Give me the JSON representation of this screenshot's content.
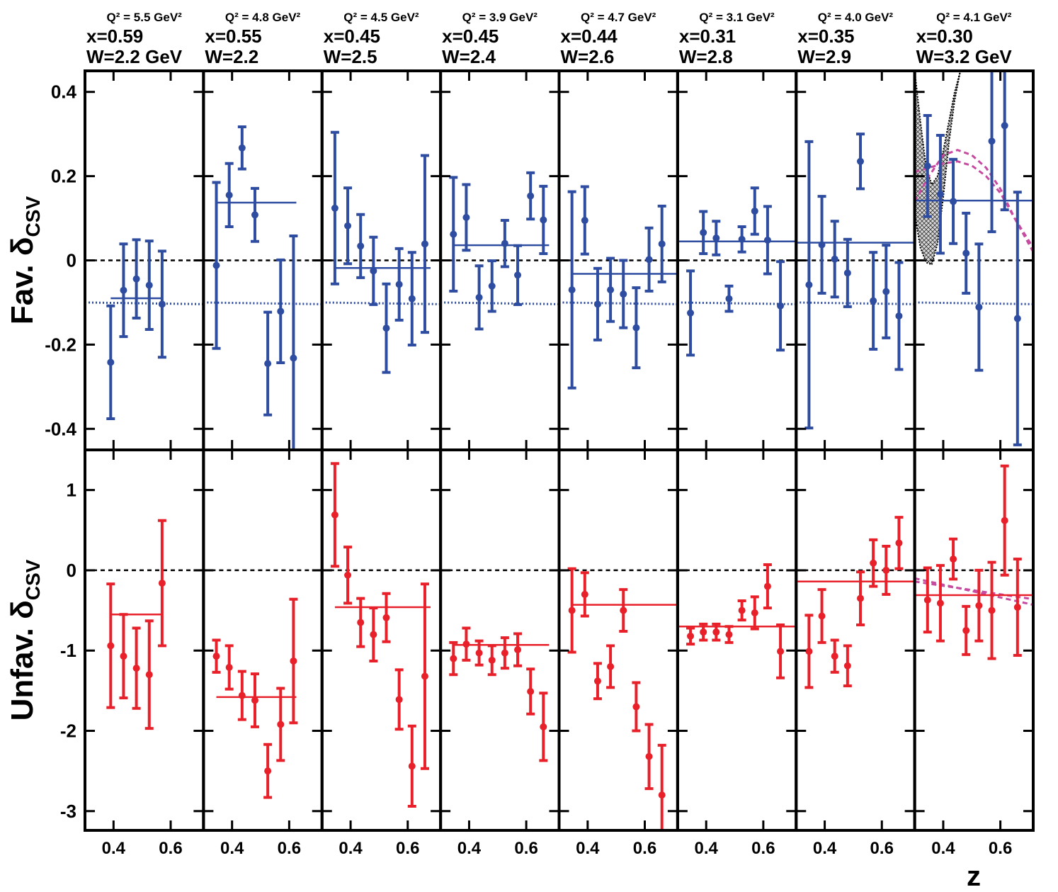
{
  "chart_data": [
    {
      "type": "scatter",
      "title": [
        "Q² = 5.5 GeV²",
        "x=0.59",
        "W=2.2 GeV"
      ],
      "ylabel": [
        "Fav. δ",
        "CSV"
      ],
      "xlim": [
        0.3,
        0.715
      ],
      "ylim": [
        -0.45,
        0.45
      ],
      "xticks": [
        0.4,
        0.6
      ],
      "yticks": [
        -0.4,
        -0.2,
        0,
        0.2,
        0.4
      ],
      "hline": 0,
      "x": [
        0.39,
        0.435,
        0.48,
        0.525,
        0.57
      ],
      "series": [
        {
          "color": "#2e4da0",
          "values": [
            -0.242,
            -0.071,
            -0.044,
            -0.059,
            -0.104
          ],
          "errors": [
            0.134,
            0.11,
            0.093,
            0.105,
            0.126
          ]
        }
      ],
      "fit": {
        "x": [
          0.39,
          0.57
        ],
        "value": -0.09
      },
      "lines": [
        {
          "color": "#2e4da0",
          "dash": "dotted",
          "x": [
            0.3,
            0.715
          ],
          "values": [
            -0.1,
            -0.104
          ]
        }
      ]
    },
    {
      "type": "scatter",
      "title": [
        "Q² = 4.8 GeV²",
        "x=0.55",
        "W=2.2"
      ],
      "xlim": [
        0.3,
        0.715
      ],
      "ylim": [
        -0.45,
        0.45
      ],
      "xticks": [
        0.4,
        0.6
      ],
      "yticks": [
        -0.4,
        -0.2,
        0,
        0.2,
        0.4
      ],
      "hline": 0,
      "x": [
        0.345,
        0.39,
        0.435,
        0.48,
        0.525,
        0.57,
        0.615
      ],
      "series": [
        {
          "color": "#2e4da0",
          "values": [
            -0.012,
            0.155,
            0.267,
            0.108,
            -0.245,
            -0.121,
            -0.232
          ],
          "errors": [
            0.197,
            0.075,
            0.05,
            0.063,
            0.122,
            0.122,
            0.29
          ]
        }
      ],
      "fit": {
        "x": [
          0.345,
          0.625
        ],
        "value": 0.137
      },
      "lines": [
        {
          "color": "#2e4da0",
          "dash": "dotted",
          "x": [
            0.3,
            0.715
          ],
          "values": [
            -0.1,
            -0.104
          ]
        }
      ]
    },
    {
      "type": "scatter",
      "title": [
        "Q² = 4.5 GeV²",
        "x=0.45",
        "W=2.5"
      ],
      "xlim": [
        0.3,
        0.715
      ],
      "ylim": [
        -0.45,
        0.45
      ],
      "xticks": [
        0.4,
        0.6
      ],
      "yticks": [
        -0.4,
        -0.2,
        0,
        0.2,
        0.4
      ],
      "hline": 0,
      "x": [
        0.345,
        0.39,
        0.435,
        0.48,
        0.525,
        0.57,
        0.615,
        0.66
      ],
      "series": [
        {
          "color": "#2e4da0",
          "values": [
            0.124,
            0.082,
            0.034,
            -0.025,
            -0.161,
            -0.057,
            -0.091,
            0.039
          ],
          "errors": [
            0.18,
            0.09,
            0.075,
            0.08,
            0.105,
            0.085,
            0.11,
            0.21
          ]
        }
      ],
      "fit": {
        "x": [
          0.345,
          0.68
        ],
        "value": -0.018
      },
      "lines": [
        {
          "color": "#2e4da0",
          "dash": "dotted",
          "x": [
            0.3,
            0.715
          ],
          "values": [
            -0.1,
            -0.104
          ]
        }
      ]
    },
    {
      "type": "scatter",
      "title": [
        "Q² = 3.9 GeV²",
        "x=0.45",
        "W=2.4"
      ],
      "xlim": [
        0.3,
        0.715
      ],
      "ylim": [
        -0.45,
        0.45
      ],
      "xticks": [
        0.4,
        0.6
      ],
      "yticks": [
        -0.4,
        -0.2,
        0,
        0.2,
        0.4
      ],
      "hline": 0,
      "x": [
        0.345,
        0.39,
        0.435,
        0.48,
        0.525,
        0.57,
        0.615,
        0.66
      ],
      "series": [
        {
          "color": "#2e4da0",
          "values": [
            0.062,
            0.102,
            -0.088,
            -0.061,
            0.04,
            -0.035,
            0.153,
            0.096
          ],
          "errors": [
            0.135,
            0.078,
            0.075,
            0.06,
            0.055,
            0.07,
            0.055,
            0.08
          ]
        }
      ],
      "fit": {
        "x": [
          0.345,
          0.68
        ],
        "value": 0.036
      },
      "lines": [
        {
          "color": "#2e4da0",
          "dash": "dotted",
          "x": [
            0.3,
            0.715
          ],
          "values": [
            -0.1,
            -0.104
          ]
        }
      ]
    },
    {
      "type": "scatter",
      "title": [
        "Q² = 4.7 GeV²",
        "x=0.44",
        "W=2.6"
      ],
      "xlim": [
        0.3,
        0.715
      ],
      "ylim": [
        -0.45,
        0.45
      ],
      "xticks": [
        0.4,
        0.6
      ],
      "yticks": [
        -0.4,
        -0.2,
        0,
        0.2,
        0.4
      ],
      "hline": 0,
      "x": [
        0.345,
        0.39,
        0.435,
        0.48,
        0.525,
        0.57,
        0.615,
        0.66
      ],
      "series": [
        {
          "color": "#2e4da0",
          "values": [
            -0.07,
            0.095,
            -0.104,
            -0.07,
            -0.08,
            -0.16,
            0.002,
            0.039
          ],
          "errors": [
            0.233,
            0.08,
            0.085,
            0.075,
            0.08,
            0.095,
            0.075,
            0.09
          ]
        }
      ],
      "fit": {
        "x": [
          0.345,
          0.715
        ],
        "value": -0.032
      },
      "lines": [
        {
          "color": "#2e4da0",
          "dash": "dotted",
          "x": [
            0.3,
            0.715
          ],
          "values": [
            -0.1,
            -0.104
          ]
        }
      ]
    },
    {
      "type": "scatter",
      "title": [
        "Q² = 3.1 GeV²",
        "x=0.31",
        "W=2.8"
      ],
      "xlim": [
        0.3,
        0.715
      ],
      "ylim": [
        -0.45,
        0.45
      ],
      "xticks": [
        0.4,
        0.6
      ],
      "yticks": [
        -0.4,
        -0.2,
        0,
        0.2,
        0.4
      ],
      "hline": 0,
      "x": [
        0.345,
        0.39,
        0.435,
        0.48,
        0.525,
        0.57,
        0.615,
        0.66
      ],
      "series": [
        {
          "color": "#2e4da0",
          "values": [
            -0.125,
            0.066,
            0.053,
            -0.091,
            0.05,
            0.117,
            0.048,
            -0.108
          ],
          "errors": [
            0.1,
            0.05,
            0.04,
            0.03,
            0.03,
            0.055,
            0.08,
            0.105
          ]
        }
      ],
      "fit": {
        "x": [
          0.3,
          0.715
        ],
        "value": 0.045
      },
      "lines": [
        {
          "color": "#2e4da0",
          "dash": "dotted",
          "x": [
            0.3,
            0.715
          ],
          "values": [
            -0.1,
            -0.104
          ]
        }
      ]
    },
    {
      "type": "scatter",
      "title": [
        "Q² = 4.0 GeV²",
        "x=0.35",
        "W=2.9"
      ],
      "xlim": [
        0.3,
        0.715
      ],
      "ylim": [
        -0.45,
        0.45
      ],
      "xticks": [
        0.4,
        0.6
      ],
      "yticks": [
        -0.4,
        -0.2,
        0,
        0.2,
        0.4
      ],
      "hline": 0,
      "x": [
        0.345,
        0.39,
        0.435,
        0.48,
        0.525,
        0.57,
        0.615,
        0.66
      ],
      "series": [
        {
          "color": "#2e4da0",
          "values": [
            -0.058,
            0.037,
            0.003,
            -0.03,
            0.235,
            -0.096,
            -0.074,
            -0.132
          ],
          "errors": [
            0.34,
            0.115,
            0.09,
            0.08,
            0.065,
            0.115,
            0.11,
            0.127
          ]
        }
      ],
      "fit": {
        "x": [
          0.3,
          0.715
        ],
        "value": 0.042
      },
      "lines": [
        {
          "color": "#2e4da0",
          "dash": "dotted",
          "x": [
            0.3,
            0.715
          ],
          "values": [
            -0.1,
            -0.104
          ]
        }
      ]
    },
    {
      "type": "scatter",
      "title": [
        "Q² = 4.1 GeV²",
        "x=0.30",
        "W=3.2 GeV"
      ],
      "xlim": [
        0.3,
        0.715
      ],
      "ylim": [
        -0.45,
        0.45
      ],
      "xticks": [
        0.4,
        0.6
      ],
      "yticks": [
        -0.4,
        -0.2,
        0,
        0.2,
        0.4
      ],
      "hline": 0,
      "band": {
        "x": [
          0.3,
          0.32,
          0.34,
          0.36,
          0.38,
          0.4,
          0.42,
          0.44,
          0.46
        ],
        "lower": [
          0.11,
          0.03,
          -0.005,
          -0.01,
          0.04,
          0.15,
          0.28,
          0.38,
          0.45
        ],
        "upper": [
          0.45,
          0.33,
          0.22,
          0.18,
          0.2,
          0.26,
          0.33,
          0.4,
          0.45
        ]
      },
      "x": [
        0.345,
        0.39,
        0.435,
        0.48,
        0.525,
        0.57,
        0.615,
        0.66
      ],
      "series": [
        {
          "color": "#2e4da0",
          "values": [
            0.224,
            0.157,
            0.14,
            0.017,
            -0.111,
            0.283,
            0.32,
            -0.138
          ],
          "errors": [
            0.12,
            0.14,
            0.1,
            0.095,
            0.15,
            0.215,
            0.2,
            0.3
          ]
        }
      ],
      "fit": {
        "x": [
          0.3,
          0.715
        ],
        "value": 0.142
      },
      "lines": [
        {
          "color": "#2e4da0",
          "dash": "dotted",
          "x": [
            0.3,
            0.715
          ],
          "values": [
            -0.1,
            -0.104
          ]
        },
        {
          "color": "#c64ba0",
          "dash": "dashed",
          "x": [
            0.3,
            0.35,
            0.4,
            0.45,
            0.5,
            0.55,
            0.6,
            0.65,
            0.715
          ],
          "values": [
            0.14,
            0.2,
            0.25,
            0.262,
            0.25,
            0.22,
            0.17,
            0.1,
            0.02
          ]
        },
        {
          "color": "#c64ba0",
          "dash": "dashed",
          "x": [
            0.3,
            0.35,
            0.4,
            0.45,
            0.5,
            0.55,
            0.6,
            0.65,
            0.715
          ],
          "values": [
            0.21,
            0.22,
            0.23,
            0.235,
            0.225,
            0.2,
            0.16,
            0.1,
            0.03
          ]
        }
      ]
    },
    {
      "type": "scatter",
      "ylabel": [
        "Unfav. δ",
        "CSV"
      ],
      "xlim": [
        0.3,
        0.715
      ],
      "ylim": [
        -3.24,
        1.5
      ],
      "xticks": [
        0.4,
        0.6
      ],
      "yticks": [
        -3,
        -2,
        -1,
        0,
        1
      ],
      "hline": 0,
      "x": [
        0.39,
        0.435,
        0.48,
        0.525,
        0.57
      ],
      "series": [
        {
          "color": "#e8202a",
          "values": [
            -0.94,
            -1.07,
            -1.22,
            -1.3,
            -0.16
          ],
          "errors": [
            0.77,
            0.52,
            0.5,
            0.67,
            0.78
          ]
        }
      ],
      "fit": {
        "x": [
          0.39,
          0.57
        ],
        "value": -0.55
      }
    },
    {
      "type": "scatter",
      "xlim": [
        0.3,
        0.715
      ],
      "ylim": [
        -3.24,
        1.5
      ],
      "xticks": [
        0.4,
        0.6
      ],
      "yticks": [
        -3,
        -2,
        -1,
        0,
        1
      ],
      "hline": 0,
      "x": [
        0.345,
        0.39,
        0.435,
        0.48,
        0.525,
        0.57,
        0.615
      ],
      "series": [
        {
          "color": "#e8202a",
          "values": [
            -1.07,
            -1.21,
            -1.56,
            -1.62,
            -2.5,
            -1.92,
            -1.13
          ],
          "errors": [
            0.2,
            0.27,
            0.3,
            0.33,
            0.33,
            0.45,
            0.77
          ]
        }
      ],
      "fit": {
        "x": [
          0.345,
          0.625
        ],
        "value": -1.58
      }
    },
    {
      "type": "scatter",
      "xlim": [
        0.3,
        0.715
      ],
      "ylim": [
        -3.24,
        1.5
      ],
      "xticks": [
        0.4,
        0.6
      ],
      "yticks": [
        -3,
        -2,
        -1,
        0,
        1
      ],
      "hline": 0,
      "x": [
        0.345,
        0.39,
        0.435,
        0.48,
        0.525,
        0.57,
        0.615,
        0.66
      ],
      "series": [
        {
          "color": "#e8202a",
          "values": [
            0.69,
            -0.06,
            -0.65,
            -0.8,
            -0.59,
            -1.61,
            -2.44,
            -1.32
          ],
          "errors": [
            0.64,
            0.35,
            0.3,
            0.33,
            0.3,
            0.37,
            0.5,
            1.15
          ]
        }
      ],
      "fit": {
        "x": [
          0.345,
          0.68
        ],
        "value": -0.46
      }
    },
    {
      "type": "scatter",
      "xlim": [
        0.3,
        0.715
      ],
      "ylim": [
        -3.24,
        1.5
      ],
      "xticks": [
        0.4,
        0.6
      ],
      "yticks": [
        -3,
        -2,
        -1,
        0,
        1
      ],
      "hline": 0,
      "x": [
        0.345,
        0.39,
        0.435,
        0.48,
        0.525,
        0.57,
        0.615,
        0.66
      ],
      "series": [
        {
          "color": "#e8202a",
          "values": [
            -1.1,
            -0.92,
            -1.03,
            -1.12,
            -1.03,
            -0.99,
            -1.51,
            -1.95
          ],
          "errors": [
            0.2,
            0.2,
            0.15,
            0.18,
            0.19,
            0.2,
            0.28,
            0.42
          ]
        }
      ],
      "fit": {
        "x": [
          0.345,
          0.68
        ],
        "value": -0.93
      }
    },
    {
      "type": "scatter",
      "xlim": [
        0.3,
        0.715
      ],
      "ylim": [
        -3.24,
        1.5
      ],
      "xticks": [
        0.4,
        0.6
      ],
      "yticks": [
        -3,
        -2,
        -1,
        0,
        1
      ],
      "hline": 0,
      "x": [
        0.345,
        0.39,
        0.435,
        0.48,
        0.525,
        0.57,
        0.615,
        0.66
      ],
      "series": [
        {
          "color": "#e8202a",
          "values": [
            -0.5,
            -0.3,
            -1.38,
            -1.2,
            -0.5,
            -1.7,
            -2.32,
            -2.8
          ],
          "errors": [
            0.52,
            0.27,
            0.22,
            0.26,
            0.26,
            0.3,
            0.4,
            0.62
          ]
        }
      ],
      "fit": {
        "x": [
          0.345,
          0.715
        ],
        "value": -0.43
      }
    },
    {
      "type": "scatter",
      "xlim": [
        0.3,
        0.715
      ],
      "ylim": [
        -3.24,
        1.5
      ],
      "xticks": [
        0.4,
        0.6
      ],
      "yticks": [
        -3,
        -2,
        -1,
        0,
        1
      ],
      "hline": 0,
      "x": [
        0.345,
        0.39,
        0.435,
        0.48,
        0.525,
        0.57,
        0.615,
        0.66
      ],
      "series": [
        {
          "color": "#e8202a",
          "values": [
            -0.82,
            -0.77,
            -0.77,
            -0.8,
            -0.5,
            -0.53,
            -0.2,
            -1.01
          ],
          "errors": [
            0.1,
            0.1,
            0.1,
            0.1,
            0.12,
            0.2,
            0.27,
            0.33
          ]
        }
      ],
      "fit": {
        "x": [
          0.3,
          0.715
        ],
        "value": -0.7
      }
    },
    {
      "type": "scatter",
      "xlim": [
        0.3,
        0.715
      ],
      "ylim": [
        -3.24,
        1.5
      ],
      "xticks": [
        0.4,
        0.6
      ],
      "yticks": [
        -3,
        -2,
        -1,
        0,
        1
      ],
      "hline": 0,
      "x": [
        0.345,
        0.39,
        0.435,
        0.48,
        0.525,
        0.57,
        0.615,
        0.66
      ],
      "series": [
        {
          "color": "#e8202a",
          "values": [
            -1.01,
            -0.57,
            -1.07,
            -1.19,
            -0.35,
            0.09,
            0,
            0.34
          ],
          "errors": [
            0.45,
            0.33,
            0.2,
            0.25,
            0.33,
            0.29,
            0.3,
            0.32
          ]
        }
      ],
      "fit": {
        "x": [
          0.3,
          0.715
        ],
        "value": -0.14
      }
    },
    {
      "type": "scatter",
      "xlabel": "z",
      "xlim": [
        0.3,
        0.715
      ],
      "ylim": [
        -3.24,
        1.5
      ],
      "xticks": [
        0.4,
        0.6
      ],
      "yticks": [
        -3,
        -2,
        -1,
        0,
        1
      ],
      "hline": 0,
      "x": [
        0.345,
        0.39,
        0.435,
        0.48,
        0.525,
        0.57,
        0.615,
        0.66
      ],
      "series": [
        {
          "color": "#e8202a",
          "values": [
            -0.37,
            -0.41,
            0.14,
            -0.75,
            -0.44,
            -0.5,
            0.62,
            -0.46
          ],
          "errors": [
            0.4,
            0.47,
            0.25,
            0.3,
            0.44,
            0.6,
            0.68,
            0.6
          ]
        }
      ],
      "fit": {
        "x": [
          0.3,
          0.715
        ],
        "value": -0.31
      },
      "lines": [
        {
          "color": "#c64ba0",
          "dash": "dashed",
          "x": [
            0.3,
            0.715
          ],
          "values": [
            -0.1,
            -0.43
          ]
        },
        {
          "color": "#c64ba0",
          "dash": "dashed",
          "x": [
            0.3,
            0.715
          ],
          "values": [
            -0.14,
            -0.36
          ]
        }
      ]
    }
  ]
}
